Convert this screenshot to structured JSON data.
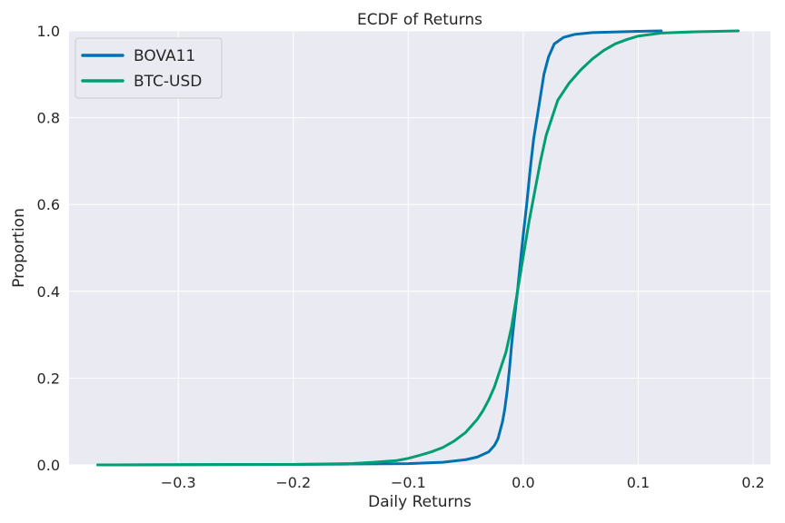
{
  "chart_data": {
    "type": "line",
    "title": "ECDF of Returns",
    "xlabel": "Daily Returns",
    "ylabel": "Proportion",
    "xlim": [
      -0.395,
      0.215
    ],
    "ylim": [
      0,
      1
    ],
    "xticks": [
      -0.3,
      -0.2,
      -0.1,
      0.0,
      0.1,
      0.2
    ],
    "xtick_labels": [
      "−0.3",
      "−0.2",
      "−0.1",
      "0.0",
      "0.1",
      "0.2"
    ],
    "yticks": [
      0,
      0.2,
      0.4,
      0.6,
      0.8,
      1.0
    ],
    "ytick_labels": [
      "0.0",
      "0.2",
      "0.4",
      "0.6",
      "0.8",
      "1.0"
    ],
    "grid": true,
    "legend_position": "top-left",
    "background": "#eaeaf2",
    "series": [
      {
        "name": "BOVA11",
        "color": "#0072b2",
        "points": [
          [
            -0.37,
            0
          ],
          [
            -0.2,
            0.001
          ],
          [
            -0.15,
            0.002
          ],
          [
            -0.1,
            0.003
          ],
          [
            -0.07,
            0.006
          ],
          [
            -0.05,
            0.012
          ],
          [
            -0.04,
            0.018
          ],
          [
            -0.03,
            0.03
          ],
          [
            -0.025,
            0.045
          ],
          [
            -0.022,
            0.06
          ],
          [
            -0.02,
            0.08
          ],
          [
            -0.018,
            0.1
          ],
          [
            -0.016,
            0.13
          ],
          [
            -0.014,
            0.17
          ],
          [
            -0.012,
            0.22
          ],
          [
            -0.01,
            0.28
          ],
          [
            -0.008,
            0.33
          ],
          [
            -0.005,
            0.4
          ],
          [
            -0.002,
            0.48
          ],
          [
            0.0,
            0.53
          ],
          [
            0.003,
            0.6
          ],
          [
            0.006,
            0.68
          ],
          [
            0.009,
            0.75
          ],
          [
            0.012,
            0.8
          ],
          [
            0.015,
            0.85
          ],
          [
            0.018,
            0.9
          ],
          [
            0.022,
            0.94
          ],
          [
            0.027,
            0.97
          ],
          [
            0.035,
            0.985
          ],
          [
            0.045,
            0.992
          ],
          [
            0.06,
            0.996
          ],
          [
            0.1,
            0.999
          ],
          [
            0.12,
            1.0
          ]
        ]
      },
      {
        "name": "BTC-USD",
        "color": "#009e73",
        "points": [
          [
            -0.37,
            0
          ],
          [
            -0.2,
            0.001
          ],
          [
            -0.15,
            0.003
          ],
          [
            -0.13,
            0.006
          ],
          [
            -0.11,
            0.01
          ],
          [
            -0.1,
            0.015
          ],
          [
            -0.09,
            0.022
          ],
          [
            -0.08,
            0.03
          ],
          [
            -0.07,
            0.04
          ],
          [
            -0.06,
            0.055
          ],
          [
            -0.05,
            0.075
          ],
          [
            -0.045,
            0.09
          ],
          [
            -0.04,
            0.105
          ],
          [
            -0.035,
            0.125
          ],
          [
            -0.03,
            0.15
          ],
          [
            -0.025,
            0.18
          ],
          [
            -0.02,
            0.22
          ],
          [
            -0.015,
            0.26
          ],
          [
            -0.01,
            0.32
          ],
          [
            -0.005,
            0.4
          ],
          [
            0.0,
            0.48
          ],
          [
            0.005,
            0.56
          ],
          [
            0.01,
            0.63
          ],
          [
            0.015,
            0.7
          ],
          [
            0.02,
            0.76
          ],
          [
            0.025,
            0.8
          ],
          [
            0.03,
            0.84
          ],
          [
            0.04,
            0.88
          ],
          [
            0.05,
            0.91
          ],
          [
            0.06,
            0.935
          ],
          [
            0.07,
            0.955
          ],
          [
            0.08,
            0.97
          ],
          [
            0.09,
            0.98
          ],
          [
            0.1,
            0.988
          ],
          [
            0.12,
            0.995
          ],
          [
            0.15,
            0.998
          ],
          [
            0.187,
            1.0
          ]
        ]
      }
    ]
  }
}
